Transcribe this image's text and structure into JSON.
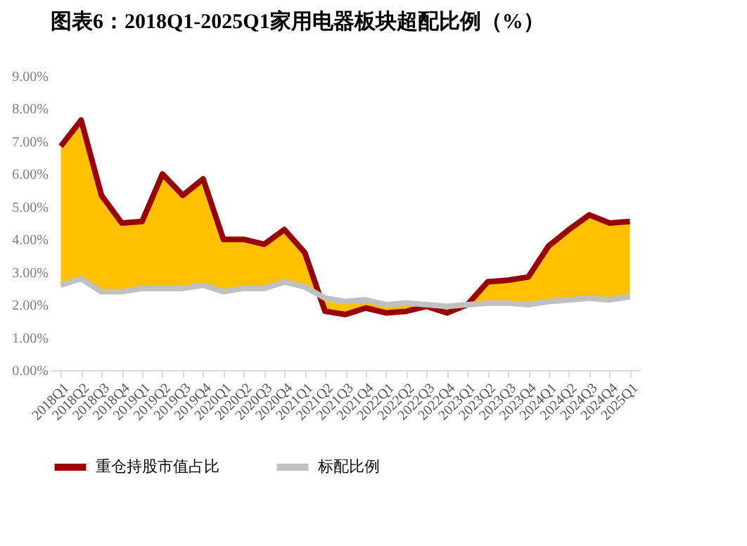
{
  "chart_data": {
    "type": "line",
    "title": "图表6：2018Q1-2025Q1家用电器板块超配比例（%）",
    "categories": [
      "2018Q1",
      "2018Q2",
      "2018Q3",
      "2018Q4",
      "2019Q1",
      "2019Q2",
      "2019Q3",
      "2019Q4",
      "2020Q1",
      "2020Q2",
      "2020Q3",
      "2020Q4",
      "2021Q1",
      "2021Q2",
      "2021Q3",
      "2021Q4",
      "2022Q1",
      "2022Q2",
      "2022Q3",
      "2022Q4",
      "2023Q1",
      "2023Q2",
      "2023Q3",
      "2023Q4",
      "2024Q1",
      "2024Q2",
      "2024Q3",
      "2024Q4",
      "2025Q1"
    ],
    "series": [
      {
        "name": "重仓持股市值占比",
        "color": "#990000",
        "values": [
          6.85,
          7.65,
          5.35,
          4.5,
          4.55,
          6.0,
          5.35,
          5.85,
          4.0,
          4.0,
          3.85,
          4.3,
          3.6,
          1.8,
          1.7,
          1.9,
          1.75,
          1.8,
          1.95,
          1.75,
          2.0,
          2.7,
          2.75,
          2.85,
          3.8,
          4.3,
          4.75,
          4.5,
          4.55
        ]
      },
      {
        "name": "标配比例",
        "color": "#c0c0c0",
        "values": [
          2.6,
          2.8,
          2.4,
          2.4,
          2.5,
          2.5,
          2.5,
          2.6,
          2.4,
          2.5,
          2.5,
          2.7,
          2.55,
          2.2,
          2.1,
          2.15,
          2.0,
          2.05,
          2.0,
          1.95,
          2.0,
          2.05,
          2.05,
          2.0,
          2.1,
          2.15,
          2.2,
          2.15,
          2.25
        ]
      }
    ],
    "ylim": [
      0,
      9
    ],
    "yticks": [
      {
        "value": 0,
        "label": "0.00%"
      },
      {
        "value": 1,
        "label": "1.00%"
      },
      {
        "value": 2,
        "label": "2.00%"
      },
      {
        "value": 3,
        "label": "3.00%"
      },
      {
        "value": 4,
        "label": "4.00%"
      },
      {
        "value": 5,
        "label": "5.00%"
      },
      {
        "value": 6,
        "label": "6.00%"
      },
      {
        "value": 7,
        "label": "7.00%"
      },
      {
        "value": 8,
        "label": "8.00%"
      },
      {
        "value": 9,
        "label": "9.00%"
      }
    ],
    "grid": false,
    "legend": "bottom",
    "marker": "none",
    "line_style": "solid"
  }
}
